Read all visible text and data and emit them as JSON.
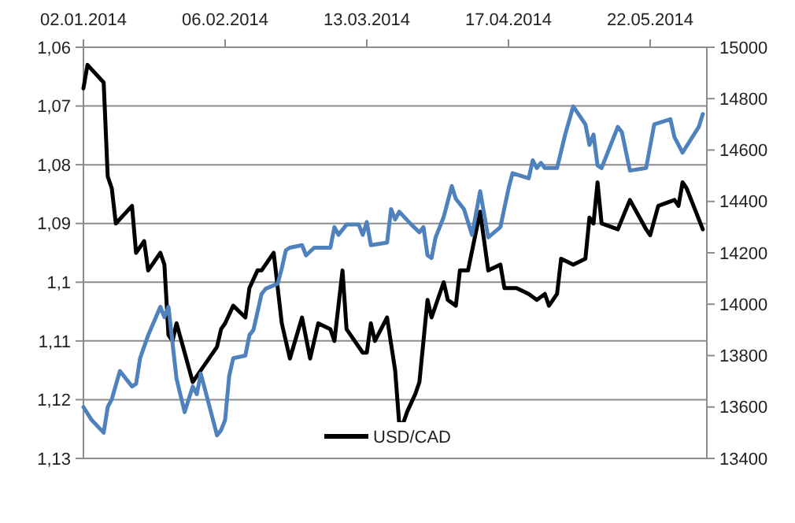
{
  "chart_data": {
    "type": "line",
    "legend": "bottom",
    "grid": "y",
    "marker": "none",
    "line_style": "solid",
    "xlim": [
      "2014-01-02",
      "2014-06-05"
    ],
    "xticks": [
      {
        "value": "2014-01-02",
        "label": "02.01.2014"
      },
      {
        "value": "2014-02-06",
        "label": "06.02.2014"
      },
      {
        "value": "2014-03-13",
        "label": "13.03.2014"
      },
      {
        "value": "2014-04-17",
        "label": "17.04.2014"
      },
      {
        "value": "2014-05-22",
        "label": "22.05.2014"
      }
    ],
    "ylim": [
      1.13,
      1.06
    ],
    "yticks": [
      {
        "value": 1.06,
        "label": "1,06"
      },
      {
        "value": 1.07,
        "label": "1,07"
      },
      {
        "value": 1.08,
        "label": "1,08"
      },
      {
        "value": 1.09,
        "label": "1,09"
      },
      {
        "value": 1.1,
        "label": "1,1"
      },
      {
        "value": 1.11,
        "label": "1,11"
      },
      {
        "value": 1.12,
        "label": "1,12"
      },
      {
        "value": 1.13,
        "label": "1,13"
      }
    ],
    "y2lim": [
      13400,
      15000
    ],
    "y2ticks": [
      13400,
      13600,
      13800,
      14000,
      14200,
      14400,
      14600,
      14800,
      15000
    ],
    "series": [
      {
        "name": "USD/CAD",
        "color": "#000000",
        "axis": "y",
        "x": [
          "2014-01-02",
          "2014-01-03",
          "2014-01-07",
          "2014-01-08",
          "2014-01-09",
          "2014-01-10",
          "2014-01-14",
          "2014-01-15",
          "2014-01-17",
          "2014-01-18",
          "2014-01-21",
          "2014-01-22",
          "2014-01-23",
          "2014-01-24",
          "2014-01-25",
          "2014-01-27",
          "2014-01-29",
          "2014-01-31",
          "2014-02-04",
          "2014-02-05",
          "2014-02-06",
          "2014-02-08",
          "2014-02-11",
          "2014-02-12",
          "2014-02-14",
          "2014-02-15",
          "2014-02-18",
          "2014-02-20",
          "2014-02-22",
          "2014-02-25",
          "2014-02-27",
          "2014-03-01",
          "2014-03-04",
          "2014-03-05",
          "2014-03-07",
          "2014-03-08",
          "2014-03-12",
          "2014-03-13",
          "2014-03-14",
          "2014-03-15",
          "2014-03-18",
          "2014-03-20",
          "2014-03-21",
          "2014-03-22",
          "2014-03-23",
          "2014-03-25",
          "2014-03-26",
          "2014-03-28",
          "2014-03-29",
          "2014-04-01",
          "2014-04-02",
          "2014-04-04",
          "2014-04-05",
          "2014-04-07",
          "2014-04-10",
          "2014-04-12",
          "2014-04-15",
          "2014-04-16",
          "2014-04-19",
          "2014-04-22",
          "2014-04-24",
          "2014-04-26",
          "2014-04-27",
          "2014-04-29",
          "2014-04-30",
          "2014-05-03",
          "2014-05-06",
          "2014-05-07",
          "2014-05-08",
          "2014-05-09",
          "2014-05-10",
          "2014-05-14",
          "2014-05-17",
          "2014-05-21",
          "2014-05-22",
          "2014-05-24",
          "2014-05-28",
          "2014-05-29",
          "2014-05-30",
          "2014-05-31",
          "2014-06-04"
        ],
        "values": [
          1.067,
          1.063,
          1.066,
          1.082,
          1.084,
          1.09,
          1.087,
          1.095,
          1.093,
          1.098,
          1.095,
          1.097,
          1.109,
          1.11,
          1.107,
          1.112,
          1.117,
          1.115,
          1.111,
          1.108,
          1.107,
          1.104,
          1.106,
          1.101,
          1.098,
          1.098,
          1.095,
          1.107,
          1.113,
          1.106,
          1.113,
          1.107,
          1.108,
          1.11,
          1.098,
          1.108,
          1.112,
          1.112,
          1.107,
          1.11,
          1.106,
          1.115,
          1.124,
          1.124,
          1.122,
          1.119,
          1.117,
          1.103,
          1.106,
          1.1,
          1.103,
          1.104,
          1.098,
          1.098,
          1.088,
          1.098,
          1.097,
          1.101,
          1.101,
          1.102,
          1.103,
          1.102,
          1.104,
          1.102,
          1.096,
          1.097,
          1.096,
          1.089,
          1.09,
          1.083,
          1.09,
          1.091,
          1.086,
          1.091,
          1.092,
          1.087,
          1.086,
          1.087,
          1.083,
          1.084,
          1.091
        ]
      },
      {
        "color": "#4f81bd",
        "axis": "y2",
        "x": [
          "2014-01-02",
          "2014-01-04",
          "2014-01-07",
          "2014-01-08",
          "2014-01-09",
          "2014-01-11",
          "2014-01-14",
          "2014-01-15",
          "2014-01-16",
          "2014-01-18",
          "2014-01-21",
          "2014-01-22",
          "2014-01-23",
          "2014-01-25",
          "2014-01-27",
          "2014-01-29",
          "2014-01-30",
          "2014-01-31",
          "2014-02-02",
          "2014-02-04",
          "2014-02-05",
          "2014-02-06",
          "2014-02-07",
          "2014-02-08",
          "2014-02-11",
          "2014-02-12",
          "2014-02-13",
          "2014-02-15",
          "2014-02-16",
          "2014-02-19",
          "2014-02-20",
          "2014-02-21",
          "2014-02-22",
          "2014-02-25",
          "2014-02-26",
          "2014-02-28",
          "2014-03-04",
          "2014-03-05",
          "2014-03-06",
          "2014-03-08",
          "2014-03-11",
          "2014-03-12",
          "2014-03-13",
          "2014-03-14",
          "2014-03-18",
          "2014-03-19",
          "2014-03-20",
          "2014-03-21",
          "2014-03-24",
          "2014-03-26",
          "2014-03-27",
          "2014-03-28",
          "2014-03-29",
          "2014-03-30",
          "2014-04-01",
          "2014-04-03",
          "2014-04-04",
          "2014-04-06",
          "2014-04-08",
          "2014-04-10",
          "2014-04-12",
          "2014-04-15",
          "2014-04-17",
          "2014-04-18",
          "2014-04-22",
          "2014-04-23",
          "2014-04-24",
          "2014-04-25",
          "2014-04-26",
          "2014-04-29",
          "2014-05-01",
          "2014-05-03",
          "2014-05-06",
          "2014-05-07",
          "2014-05-08",
          "2014-05-09",
          "2014-05-10",
          "2014-05-14",
          "2014-05-15",
          "2014-05-17",
          "2014-05-21",
          "2014-05-23",
          "2014-05-27",
          "2014-05-28",
          "2014-05-30",
          "2014-06-03",
          "2014-06-04"
        ],
        "values": [
          13600,
          13550,
          13500,
          13600,
          13630,
          13740,
          13680,
          13690,
          13790,
          13880,
          13990,
          13950,
          13990,
          13710,
          13580,
          13680,
          13650,
          13730,
          13610,
          13490,
          13510,
          13550,
          13720,
          13790,
          13800,
          13880,
          13900,
          14040,
          14060,
          14080,
          14140,
          14210,
          14220,
          14230,
          14190,
          14220,
          14220,
          14300,
          14270,
          14310,
          14310,
          14270,
          14320,
          14230,
          14240,
          14370,
          14330,
          14360,
          14310,
          14280,
          14300,
          14190,
          14180,
          14260,
          14340,
          14460,
          14410,
          14370,
          14270,
          14440,
          14260,
          14300,
          14450,
          14510,
          14490,
          14560,
          14530,
          14550,
          14530,
          14530,
          14660,
          14770,
          14700,
          14620,
          14660,
          14540,
          14530,
          14690,
          14670,
          14520,
          14530,
          14700,
          14720,
          14650,
          14590,
          14690,
          14740
        ]
      }
    ]
  }
}
